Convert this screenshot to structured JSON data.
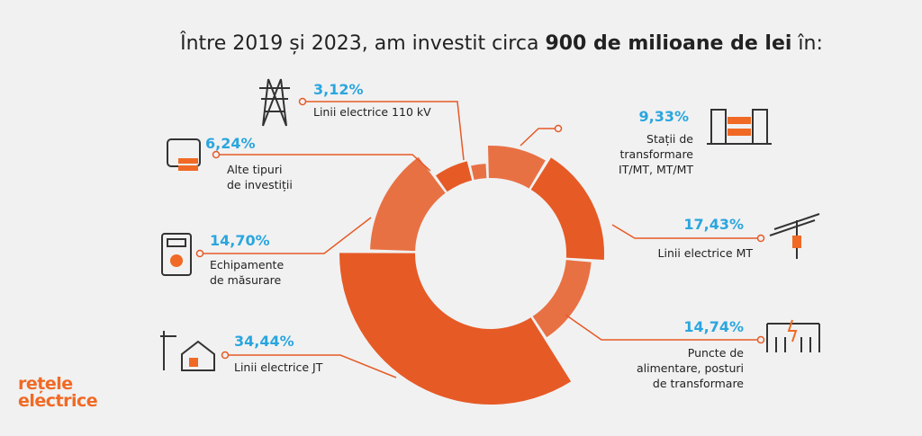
{
  "chart_data": {
    "type": "donut",
    "title_parts": [
      "Între 2019 și 2023, am investit circa ",
      "900 de milioane de lei",
      " în:"
    ],
    "categories": [
      "Stații de\ntransformare\nIT/MT, MT/MT",
      "Linii electrice MT",
      "Puncte de\nalimentare, posturi\nde transformare",
      "Linii electrice JT",
      "Echipamente\nde măsurare",
      "Alte tipuri\nde investiții",
      "Linii electrice 110 kV"
    ],
    "values": [
      9.33,
      17.43,
      14.74,
      34.44,
      14.7,
      6.24,
      3.12
    ],
    "value_labels": [
      "9,33%",
      "17,43%",
      "14,74%",
      "34,44%",
      "14,70%",
      "6,24%",
      "3,12%"
    ],
    "color": "#e65a26",
    "label_color": "#2aa6df"
  },
  "logo": "rețele\nelectrice"
}
